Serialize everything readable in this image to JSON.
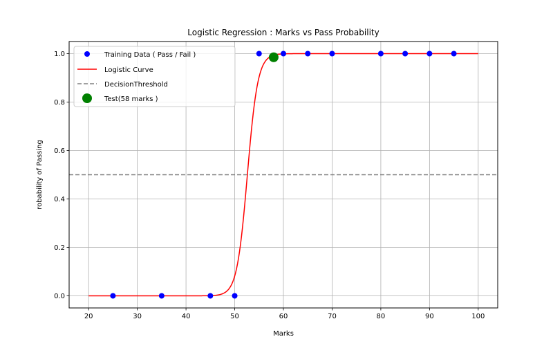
{
  "chart_data": {
    "type": "scatter",
    "title": "Logistic Regression : Marks vs Pass Probability",
    "xlabel": "Marks",
    "ylabel": "robability of Passing",
    "xlim": [
      16,
      104
    ],
    "ylim": [
      -0.05,
      1.05
    ],
    "xticks": [
      20,
      30,
      40,
      50,
      60,
      70,
      80,
      90,
      100
    ],
    "yticks": [
      0.0,
      0.2,
      0.4,
      0.6,
      0.8,
      1.0
    ],
    "grid": true,
    "legend_position": "top-left",
    "series": [
      {
        "name": "Training Data ( Pass / Fail )",
        "kind": "scatter",
        "color": "#0000ff",
        "x": [
          25,
          35,
          45,
          50,
          55,
          60,
          65,
          70,
          80,
          85,
          90,
          95
        ],
        "y": [
          0,
          0,
          0,
          0,
          1,
          1,
          1,
          1,
          1,
          1,
          1,
          1
        ]
      },
      {
        "name": "Logistic Curve",
        "kind": "line",
        "color": "#ff0000",
        "x_range": [
          20,
          100
        ],
        "midpoint": 52.6,
        "steepness": 0.93
      },
      {
        "name": "DecisionThreshold",
        "kind": "hline",
        "color": "#808080",
        "y": 0.5
      },
      {
        "name": "Test(58 marks )",
        "kind": "scatter",
        "color": "#008000",
        "x": [
          58
        ],
        "y": [
          0.985
        ]
      }
    ]
  }
}
